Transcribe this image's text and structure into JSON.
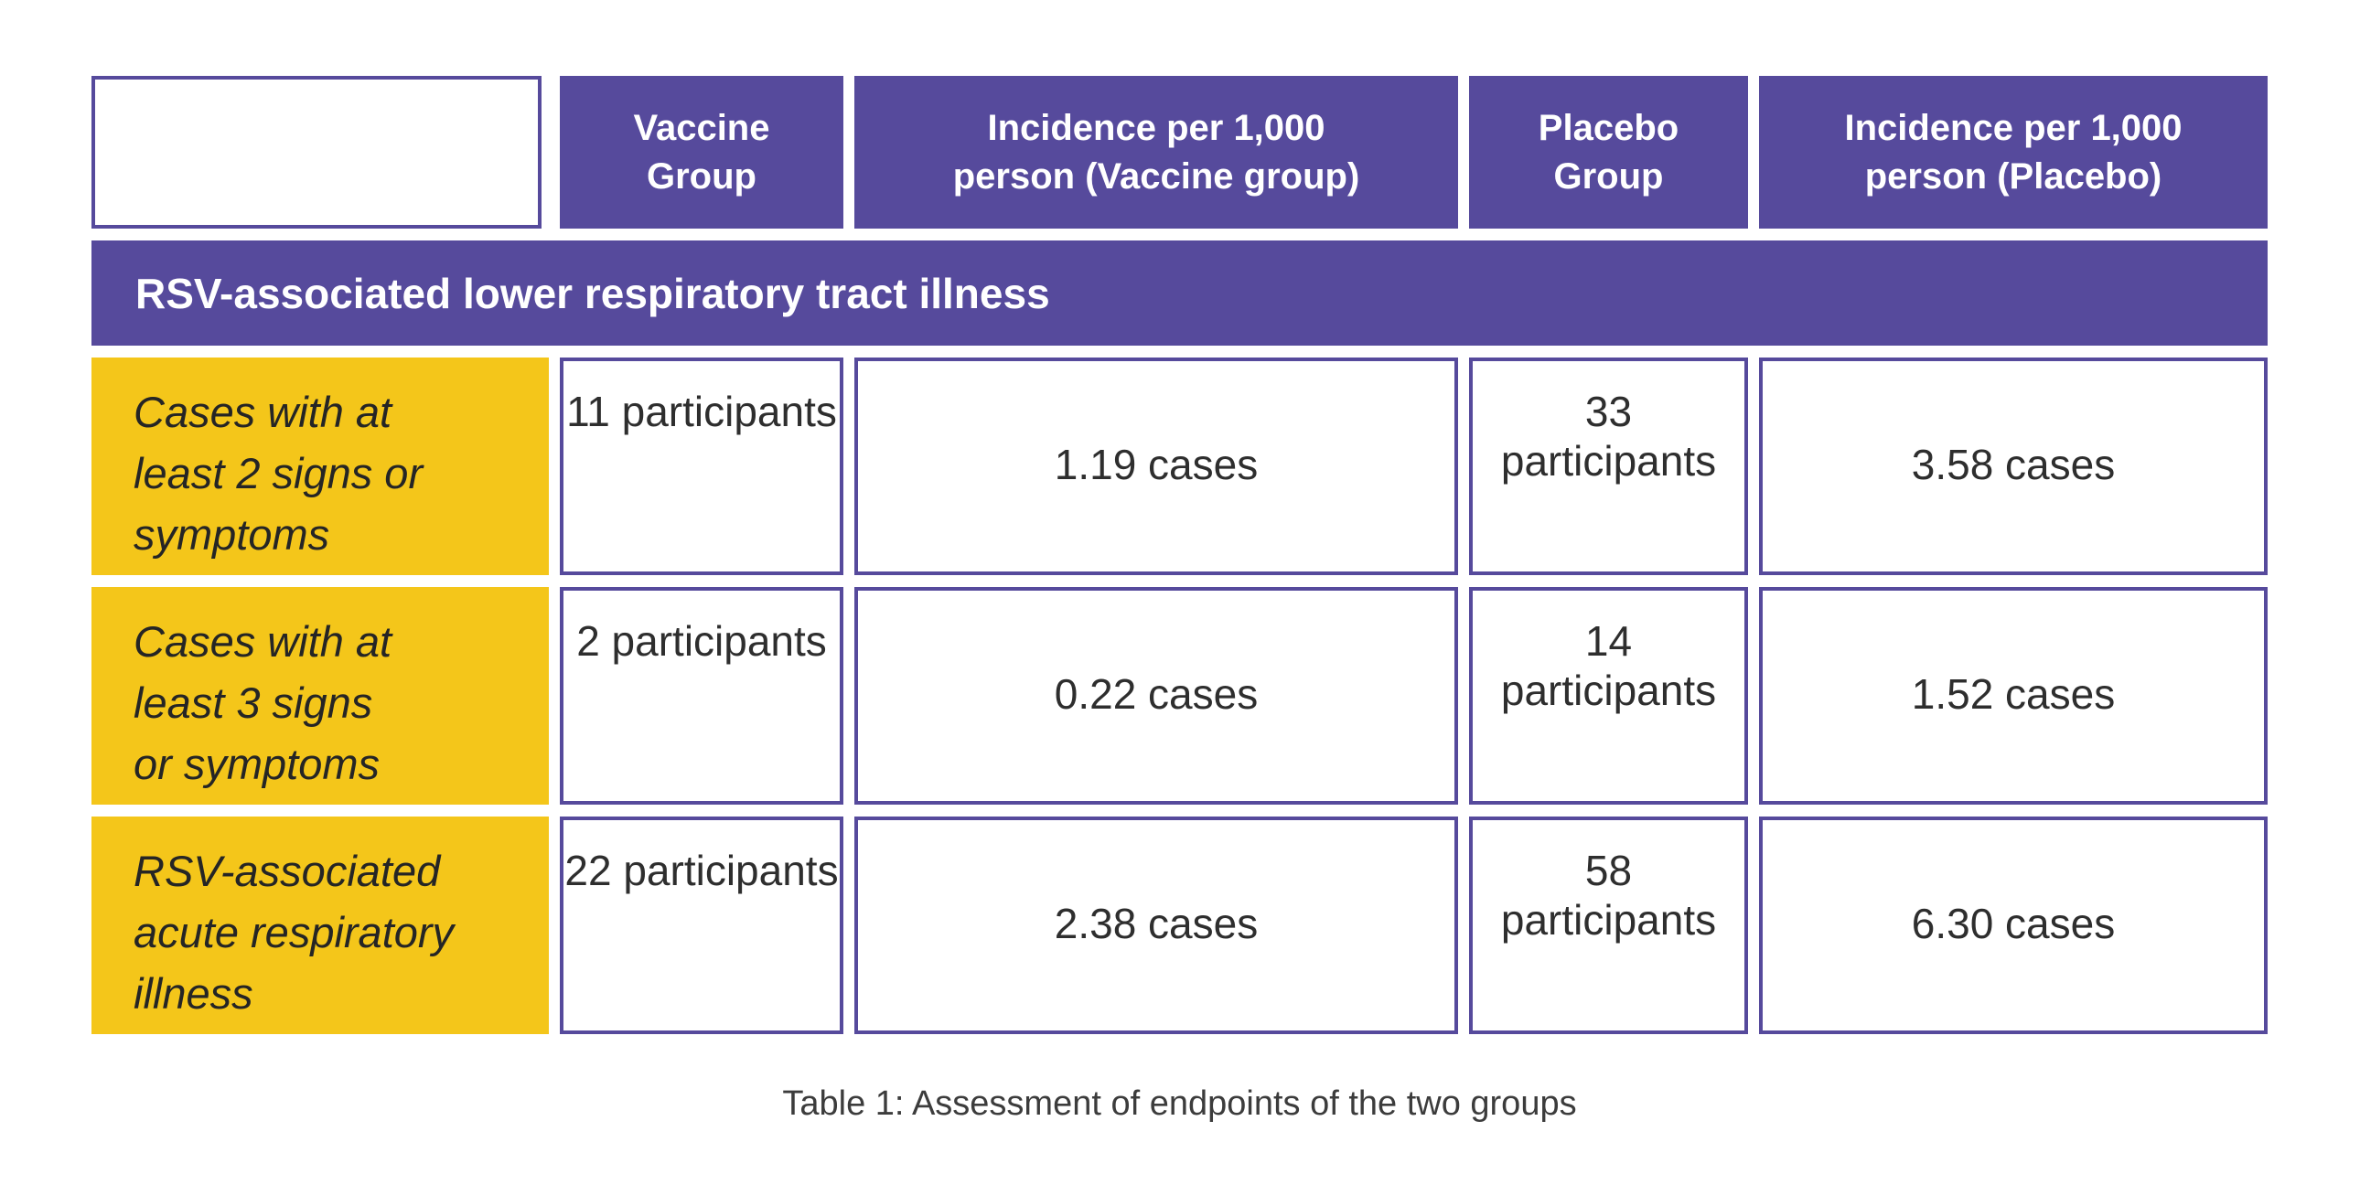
{
  "colors": {
    "purple": "#564A9C",
    "yellow": "#F4C61A",
    "header_text": "#FFFFFF",
    "value_text": "#2E2E2E",
    "caption_text": "#3C3C3C",
    "background": "#FFFFFF"
  },
  "table": {
    "header": {
      "columns": [
        {
          "label": "Vaccine Group",
          "lines": [
            "Vaccine",
            "Group"
          ]
        },
        {
          "label": "Incidence per 1,000 person (Vaccine group)",
          "lines": [
            "Incidence per 1,000",
            "person (Vaccine group)"
          ]
        },
        {
          "label": "Placebo Group",
          "lines": [
            "Placebo",
            "Group"
          ]
        },
        {
          "label": "Incidence per 1,000 person (Placebo)",
          "lines": [
            "Incidence per 1,000",
            "person (Placebo)"
          ]
        }
      ]
    },
    "band": "RSV-associated lower respiratory tract illness",
    "rows": [
      {
        "label": "Cases with at least 2 signs or symptoms",
        "label_lines": [
          "Cases with at",
          "least 2 signs or",
          "symptoms"
        ],
        "cells": [
          "11 participants",
          "1.19 cases",
          "33 participants",
          "3.58 cases"
        ]
      },
      {
        "label": "Cases with at least 3 signs or symptoms",
        "label_lines": [
          "Cases with at",
          "least 3 signs",
          "or symptoms"
        ],
        "cells": [
          "2 participants",
          "0.22 cases",
          "14 participants",
          "1.52 cases"
        ]
      },
      {
        "label": "RSV-associated acute respiratory illness",
        "label_lines": [
          "RSV-associated",
          "acute respiratory",
          "illness"
        ],
        "cells": [
          "22 participants",
          "2.38 cases",
          "58 participants",
          "6.30 cases"
        ]
      }
    ]
  },
  "caption": "Table 1: Assessment of endpoints of the two groups",
  "chart_data": {
    "type": "table",
    "title": "Table 1: Assessment of endpoints of the two groups",
    "columns": [
      "",
      "Vaccine Group",
      "Incidence per 1,000 person (Vaccine group)",
      "Placebo Group",
      "Incidence per 1,000 person (Placebo)"
    ],
    "section": "RSV-associated lower respiratory tract illness",
    "rows": [
      {
        "endpoint": "Cases with at least 2 signs or symptoms",
        "vaccine_participants": 11,
        "vaccine_incidence_per_1000": 1.19,
        "placebo_participants": 33,
        "placebo_incidence_per_1000": 3.58
      },
      {
        "endpoint": "Cases with at least 3 signs or symptoms",
        "vaccine_participants": 2,
        "vaccine_incidence_per_1000": 0.22,
        "placebo_participants": 14,
        "placebo_incidence_per_1000": 1.52
      },
      {
        "endpoint": "RSV-associated acute respiratory illness",
        "vaccine_participants": 22,
        "vaccine_incidence_per_1000": 2.38,
        "placebo_participants": 58,
        "placebo_incidence_per_1000": 6.3
      }
    ]
  }
}
